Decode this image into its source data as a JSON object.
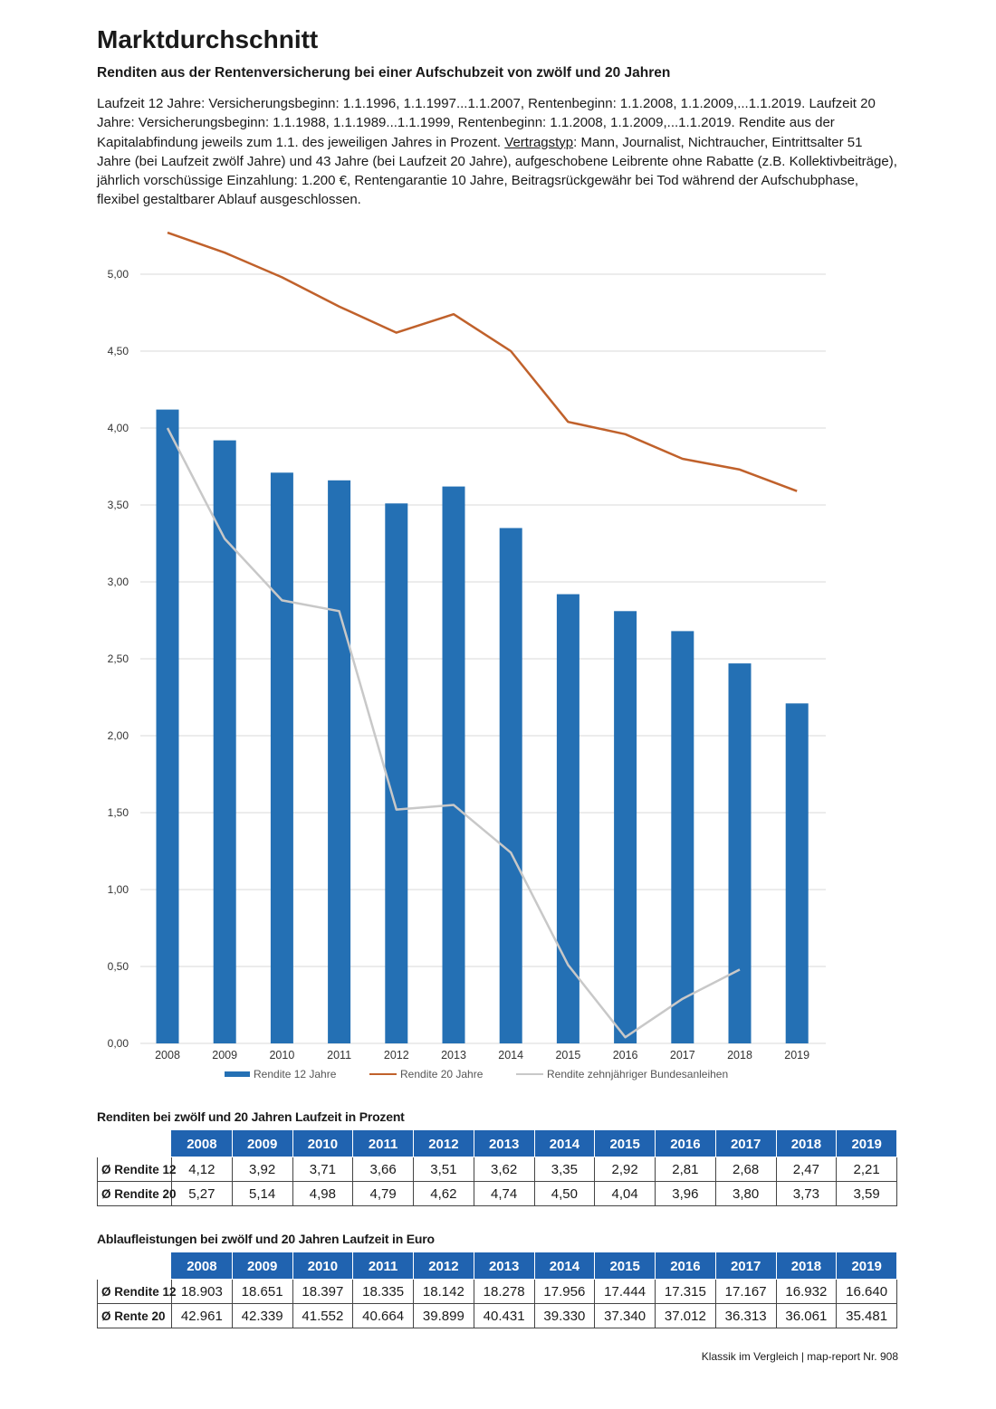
{
  "header": {
    "title": "Marktdurchschnitt",
    "subtitle": "Renditen aus der Rentenversicherung bei einer Aufschubzeit von zwölf und 20 Jahren",
    "description_part1": "Laufzeit 12 Jahre: Versicherungsbeginn: 1.1.1996, 1.1.1997...1.1.2007, Rentenbeginn: 1.1.2008, 1.1.2009,...1.1.2019. Laufzeit 20 Jahre: Versicherungsbeginn: 1.1.1988, 1.1.1989...1.1.1999, Rentenbeginn: 1.1.2008, 1.1.2009,...1.1.2019. Rendite aus der Kapitalabfindung jeweils zum 1.1. des jeweiligen Jahres in Prozent. ",
    "description_underlined": "Vertragstyp",
    "description_part2": ": Mann, Journalist, Nichtraucher, Eintrittsalter 51 Jahre (bei Laufzeit zwölf Jahre) und 43 Jahre (bei Laufzeit 20 Jahre), aufgeschobene Leibrente ohne Rabatte (z.B. Kollektivbeiträge), jährlich vorschüssige Einzahlung: 1.200 €, Rentengarantie 10 Jahre, Beitragsrückgewähr bei Tod während der Aufschubphase, flexibel gestaltbarer Ablauf ausgeschlossen."
  },
  "chart_data": {
    "type": "bar",
    "categories": [
      "2008",
      "2009",
      "2010",
      "2011",
      "2012",
      "2013",
      "2014",
      "2015",
      "2016",
      "2017",
      "2018",
      "2019"
    ],
    "series": [
      {
        "name": "Rendite 12 Jahre",
        "type": "bar",
        "color": "#2470b4",
        "values": [
          4.12,
          3.92,
          3.71,
          3.66,
          3.51,
          3.62,
          3.35,
          2.92,
          2.81,
          2.68,
          2.47,
          2.21
        ]
      },
      {
        "name": "Rendite 20 Jahre",
        "type": "line",
        "color": "#c0612b",
        "values": [
          5.27,
          5.14,
          4.98,
          4.79,
          4.62,
          4.74,
          4.5,
          4.04,
          3.96,
          3.8,
          3.73,
          3.59
        ]
      },
      {
        "name": "Rendite zehnjähriger Bundesanleihen",
        "type": "line",
        "color": "#c8c8c8",
        "values": [
          4.0,
          3.28,
          2.88,
          2.81,
          1.52,
          1.55,
          1.24,
          0.51,
          0.04,
          0.29,
          0.48,
          null
        ]
      }
    ],
    "yticks": [
      "0,00",
      "0,50",
      "1,00",
      "1,50",
      "2,00",
      "2,50",
      "3,00",
      "3,50",
      "4,00",
      "4,50",
      "5,00"
    ],
    "ylim": [
      0,
      5
    ],
    "grid": true,
    "legend": "bottom"
  },
  "table1": {
    "caption": "Renditen bei zwölf und 20 Jahren Laufzeit in Prozent",
    "headers": [
      "2008",
      "2009",
      "2010",
      "2011",
      "2012",
      "2013",
      "2014",
      "2015",
      "2016",
      "2017",
      "2018",
      "2019"
    ],
    "rows": [
      {
        "label": "Ø Rendite 12",
        "cells": [
          "4,12",
          "3,92",
          "3,71",
          "3,66",
          "3,51",
          "3,62",
          "3,35",
          "2,92",
          "2,81",
          "2,68",
          "2,47",
          "2,21"
        ]
      },
      {
        "label": "Ø Rendite 20",
        "cells": [
          "5,27",
          "5,14",
          "4,98",
          "4,79",
          "4,62",
          "4,74",
          "4,50",
          "4,04",
          "3,96",
          "3,80",
          "3,73",
          "3,59"
        ]
      }
    ]
  },
  "table2": {
    "caption": "Ablaufleistungen bei zwölf und 20 Jahren Laufzeit in Euro",
    "headers": [
      "2008",
      "2009",
      "2010",
      "2011",
      "2012",
      "2013",
      "2014",
      "2015",
      "2016",
      "2017",
      "2018",
      "2019"
    ],
    "rows": [
      {
        "label": "Ø Rendite 12",
        "cells": [
          "18.903",
          "18.651",
          "18.397",
          "18.335",
          "18.142",
          "18.278",
          "17.956",
          "17.444",
          "17.315",
          "17.167",
          "16.932",
          "16.640"
        ]
      },
      {
        "label": "Ø Rente 20",
        "cells": [
          "42.961",
          "42.339",
          "41.552",
          "40.664",
          "39.899",
          "40.431",
          "39.330",
          "37.340",
          "37.012",
          "36.313",
          "36.061",
          "35.481"
        ]
      }
    ]
  },
  "footer": "Klassik im Vergleich | map-report Nr. 908"
}
